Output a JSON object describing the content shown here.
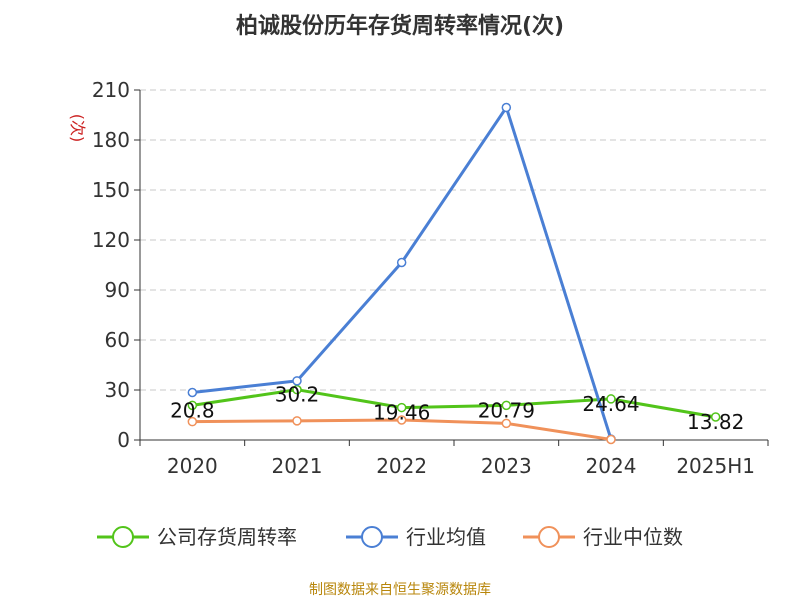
{
  "chart_data": {
    "type": "line",
    "title": "柏诚股份历年存货周转率情况(次)",
    "ylabel": "(次)",
    "xlabel": "",
    "categories": [
      "2020",
      "2021",
      "2022",
      "2023",
      "2024",
      "2025H1"
    ],
    "ylim": [
      0,
      210
    ],
    "yticks": [
      0,
      30,
      60,
      90,
      120,
      150,
      180,
      210
    ],
    "grid": true,
    "legend_position": "bottom",
    "series": [
      {
        "name": "公司存货周转率",
        "color": "#52c41a",
        "values": [
          20.8,
          30.2,
          19.46,
          20.79,
          24.64,
          13.82
        ],
        "data_labels": [
          "20.8",
          "30.2",
          "19.46",
          "20.79",
          "24.64",
          "13.82"
        ]
      },
      {
        "name": "行业均值",
        "color": "#4a7fd4",
        "values": [
          28.5,
          35.5,
          106.5,
          199.5,
          0.5,
          null
        ]
      },
      {
        "name": "行业中位数",
        "color": "#f0915a",
        "values": [
          11.0,
          11.5,
          12.0,
          10.0,
          0.3,
          null
        ]
      }
    ]
  },
  "source_text": "制图数据来自恒生聚源数据库"
}
